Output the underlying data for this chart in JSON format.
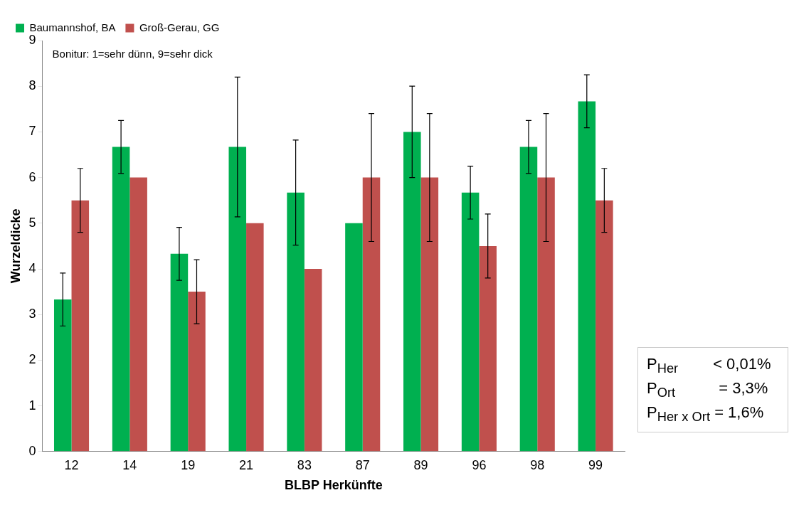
{
  "chart_data": {
    "type": "bar",
    "xlabel": "BLBP Herkünfte",
    "ylabel": "Wurzeldicke",
    "categories": [
      "12",
      "14",
      "19",
      "21",
      "83",
      "87",
      "89",
      "96",
      "98",
      "99"
    ],
    "series": [
      {
        "name": "Baumannshof, BA",
        "color": "#00b050",
        "values": [
          3.33,
          6.67,
          4.33,
          6.67,
          5.67,
          5.0,
          7.0,
          5.67,
          6.67,
          7.67
        ],
        "errors": [
          0.58,
          0.58,
          0.58,
          1.53,
          1.15,
          null,
          1.0,
          0.58,
          0.58,
          0.58
        ]
      },
      {
        "name": "Groß-Gerau, GG",
        "color": "#c0504d",
        "values": [
          5.5,
          6.0,
          3.5,
          5.0,
          4.0,
          6.0,
          6.0,
          4.5,
          6.0,
          5.5
        ],
        "errors": [
          0.7,
          null,
          0.7,
          null,
          null,
          1.4,
          1.4,
          0.7,
          1.4,
          0.7
        ]
      }
    ],
    "ylim": [
      0,
      9
    ],
    "yticks": [
      0,
      1,
      2,
      3,
      4,
      5,
      6,
      7,
      8,
      9
    ],
    "grid": false,
    "legend": "top left",
    "annotations": [
      "Bonitur: 1=sehr dünn, 9=sehr dick",
      "P$_{Her}$        < 0,01%",
      "P$_{Ort}$          = 3,3%",
      "P$_{Her x Ort}$ = 1,6%"
    ]
  }
}
